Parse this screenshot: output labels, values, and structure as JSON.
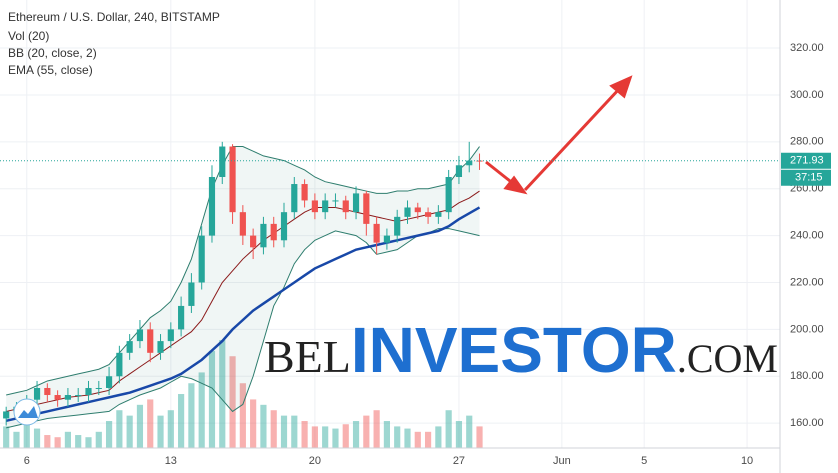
{
  "chart_data": {
    "type": "candlestick",
    "title": "Ethereum / U.S. Dollar, 240, BITSTAMP",
    "indicator_labels": [
      "Vol (20)",
      "BB (20, close, 2)",
      "EMA (55, close)"
    ],
    "x": [
      5,
      5.5,
      6,
      6.5,
      7,
      7.5,
      8,
      8.5,
      9,
      9.5,
      10,
      10.5,
      11,
      11.5,
      12,
      12.5,
      13,
      13.5,
      14,
      14.5,
      15,
      15.5,
      16,
      16.5,
      17,
      17.5,
      18,
      18.5,
      19,
      19.5,
      20,
      20.5,
      21,
      21.5,
      22,
      22.5,
      23,
      23.5,
      24,
      24.5,
      25,
      25.5,
      26,
      26.5,
      27,
      27.5,
      28
    ],
    "open": [
      162,
      165,
      167,
      170,
      175,
      172,
      170,
      172,
      172,
      175,
      175,
      180,
      190,
      195,
      200,
      190,
      195,
      200,
      210,
      220,
      240,
      265,
      278,
      250,
      240,
      235,
      245,
      238,
      250,
      262,
      255,
      250,
      255,
      255,
      250,
      258,
      245,
      237,
      240,
      248,
      252,
      250,
      248,
      250,
      265,
      270,
      272
    ],
    "high": [
      167,
      169,
      172,
      178,
      177,
      174,
      175,
      175,
      178,
      178,
      184,
      193,
      198,
      204,
      203,
      198,
      203,
      214,
      224,
      244,
      270,
      280,
      279,
      253,
      243,
      248,
      248,
      254,
      265,
      264,
      258,
      258,
      258,
      257,
      261,
      259,
      248,
      243,
      251,
      255,
      254,
      252,
      253,
      268,
      274,
      280,
      275
    ],
    "low": [
      159,
      162,
      164,
      167,
      169,
      167,
      167,
      169,
      169,
      172,
      172,
      177,
      187,
      192,
      186,
      187,
      192,
      197,
      207,
      217,
      237,
      262,
      245,
      236,
      230,
      232,
      235,
      235,
      247,
      252,
      247,
      247,
      252,
      247,
      247,
      240,
      232,
      234,
      237,
      245,
      247,
      245,
      245,
      247,
      262,
      267,
      268
    ],
    "close": [
      165,
      167,
      170,
      175,
      172,
      170,
      172,
      172,
      175,
      175,
      180,
      190,
      195,
      200,
      190,
      195,
      200,
      210,
      220,
      240,
      265,
      278,
      250,
      240,
      235,
      245,
      238,
      250,
      262,
      255,
      250,
      255,
      255,
      250,
      258,
      245,
      237,
      240,
      248,
      252,
      250,
      248,
      250,
      265,
      270,
      272,
      271.93
    ],
    "volume": [
      20,
      15,
      25,
      18,
      12,
      10,
      15,
      12,
      10,
      15,
      25,
      35,
      30,
      40,
      45,
      30,
      35,
      50,
      60,
      70,
      90,
      100,
      85,
      60,
      45,
      40,
      35,
      30,
      30,
      25,
      20,
      20,
      18,
      22,
      25,
      30,
      35,
      25,
      20,
      18,
      15,
      15,
      20,
      35,
      25,
      30,
      20
    ],
    "volume_ylim": [
      0,
      415
    ],
    "up_color": "#26a69a",
    "down_color": "#ef5350",
    "bb": {
      "upper": [
        172,
        173,
        174,
        176,
        178,
        179,
        180,
        181,
        182,
        183,
        185,
        190,
        195,
        200,
        205,
        208,
        212,
        220,
        230,
        245,
        260,
        270,
        278,
        278,
        276,
        274,
        273,
        272,
        270,
        268,
        265,
        263,
        262,
        261,
        260,
        259,
        258,
        258,
        259,
        259,
        260,
        260,
        261,
        262,
        268,
        272,
        278
      ],
      "basis": [
        165,
        166,
        167,
        168,
        169,
        170,
        171,
        171.5,
        172,
        173,
        174,
        178,
        181,
        184,
        187,
        190,
        193,
        196,
        199,
        204,
        212,
        220,
        225,
        230,
        234,
        238,
        241,
        244,
        247,
        250,
        252,
        252,
        252,
        251,
        250,
        249,
        248,
        247,
        246,
        247,
        248,
        249,
        250,
        251,
        254,
        256,
        259
      ],
      "lower": [
        158,
        159,
        160,
        161,
        162,
        162.5,
        163,
        163.5,
        164,
        164.5,
        165,
        168,
        170,
        172,
        173.5,
        175,
        177.5,
        180,
        179,
        177,
        175,
        170,
        165,
        168,
        180,
        195,
        210,
        218,
        228,
        234,
        238,
        240,
        242,
        241,
        240,
        237,
        232,
        233,
        234,
        237,
        240,
        241,
        243,
        243,
        242,
        241,
        240
      ],
      "band_color": "#2e7d6e",
      "basis_color": "#8b1a1a"
    },
    "ema": {
      "color": "#1848a8",
      "values": [
        161,
        162,
        163,
        164,
        165,
        166,
        167,
        168,
        169,
        170,
        171,
        172,
        173,
        174.5,
        176,
        177.5,
        179,
        181,
        184,
        187,
        191,
        195,
        200,
        204,
        208,
        211,
        214,
        217,
        220,
        223,
        226,
        228,
        230,
        232,
        234,
        235,
        236,
        237,
        238,
        239,
        240,
        241,
        242,
        244,
        247,
        249.5,
        252
      ]
    },
    "last_price": 271.93,
    "countdown": "37:15",
    "xlim": [
      4.7,
      42.6
    ],
    "xticks": [
      6,
      13,
      20,
      27,
      {
        "value": 32,
        "label": "Jun"
      },
      {
        "value": 36,
        "label": "5"
      },
      {
        "value": 41,
        "label": "10"
      }
    ],
    "ylim": [
      149.4,
      340.5
    ],
    "yticks": [
      {
        "value": 160,
        "label": "160.00"
      },
      {
        "value": 180,
        "label": "180.00"
      },
      {
        "value": 200,
        "label": "200.00"
      },
      {
        "value": 220,
        "label": "220.00"
      },
      {
        "value": 240,
        "label": "240.00"
      },
      {
        "value": 260,
        "label": "260.00"
      },
      {
        "value": 280,
        "label": "280.00"
      },
      {
        "value": 300,
        "label": "300.00"
      },
      {
        "value": 320,
        "label": "320.00"
      }
    ],
    "grid": true,
    "watermark": [
      "BEL",
      "INVESTOR",
      ".COM"
    ]
  }
}
